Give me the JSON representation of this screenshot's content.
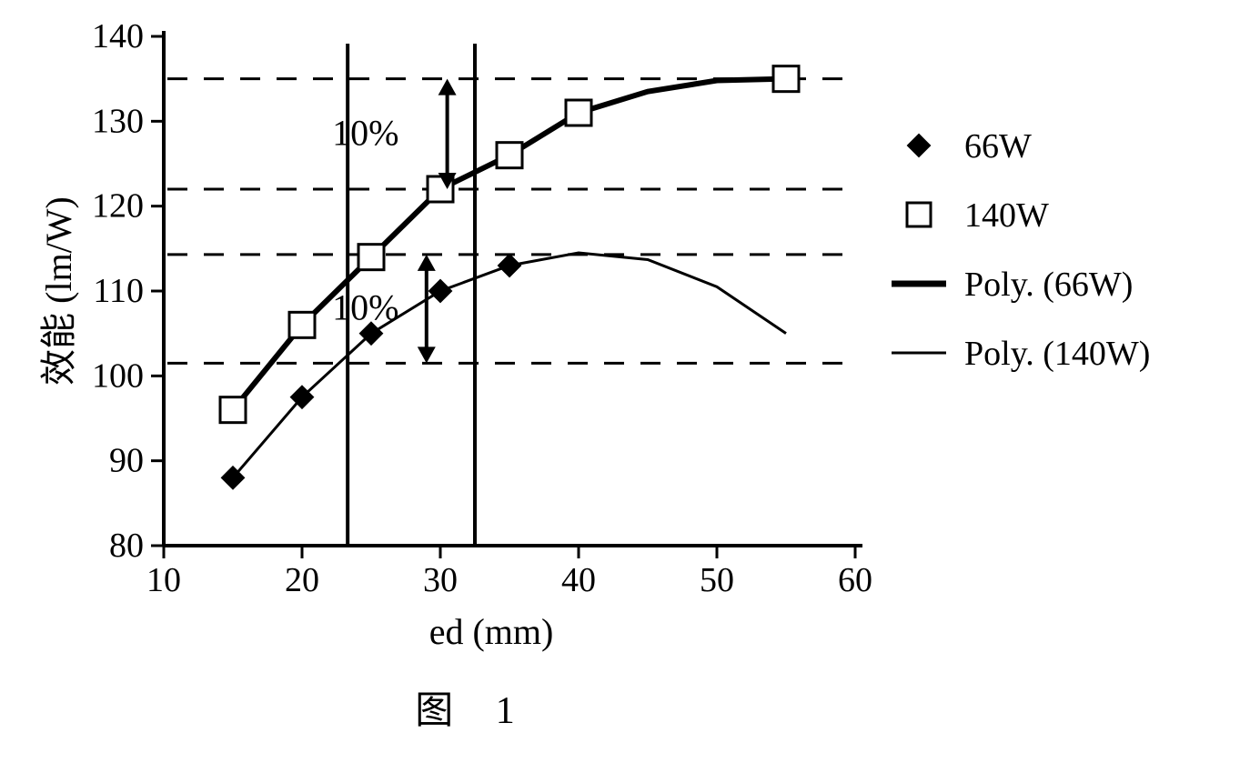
{
  "figure": {
    "caption": "图 1",
    "type": "scatter+line",
    "xlabel": "ed (mm)",
    "ylabel": "效能 (lm/W)",
    "xlabel_fontsize": 40,
    "ylabel_fontsize": 40,
    "tick_fontsize": 38,
    "caption_fontsize": 42,
    "xlim": [
      10,
      60
    ],
    "ylim": [
      80,
      140
    ],
    "xticks": [
      10,
      20,
      30,
      40,
      50,
      60
    ],
    "yticks": [
      80,
      90,
      100,
      110,
      120,
      130,
      140
    ],
    "background_color": "#ffffff",
    "axis_color": "#000000",
    "series": {
      "s66w": {
        "marker": "diamond",
        "marker_fill": "#000000",
        "marker_size": 12,
        "x": [
          15,
          20,
          25,
          30,
          35
        ],
        "y": [
          88,
          97.5,
          105,
          110,
          113
        ]
      },
      "s140w": {
        "marker": "square",
        "marker_fill": "#ffffff",
        "marker_stroke": "#000000",
        "marker_size": 14,
        "x": [
          15,
          20,
          25,
          30,
          35,
          40,
          55
        ],
        "y": [
          96,
          106,
          114,
          122,
          126,
          131,
          135
        ]
      },
      "poly66": {
        "kind": "line",
        "stroke_width": 3,
        "color": "#000000",
        "x": [
          15,
          20,
          25,
          30,
          35,
          40,
          45,
          50,
          55
        ],
        "y": [
          88,
          97.5,
          105,
          110,
          113,
          114.5,
          113.7,
          110.5,
          105
        ]
      },
      "poly140": {
        "kind": "line",
        "stroke_width": 6,
        "color": "#000000",
        "x": [
          15,
          20,
          25,
          30,
          35,
          40,
          45,
          50,
          55
        ],
        "y": [
          96,
          106,
          114,
          122,
          126,
          131,
          133.5,
          134.8,
          135
        ]
      }
    },
    "dashed_h": [
      101.5,
      114.3,
      122,
      135
    ],
    "vertical_guides": [
      23.3,
      32.5
    ],
    "annotations": {
      "pct_upper": "10%",
      "pct_lower": "10%",
      "pct_fontsize": 40
    },
    "legend": {
      "fontsize": 38,
      "items": [
        {
          "label": "66W",
          "marker": "diamond",
          "fill": "#000000"
        },
        {
          "label": "140W",
          "marker": "square",
          "fill": "#ffffff",
          "stroke": "#000000"
        },
        {
          "label": "Poly. (66W)",
          "line": "thick"
        },
        {
          "label": "Poly. (140W)",
          "line": "thin"
        }
      ]
    }
  }
}
